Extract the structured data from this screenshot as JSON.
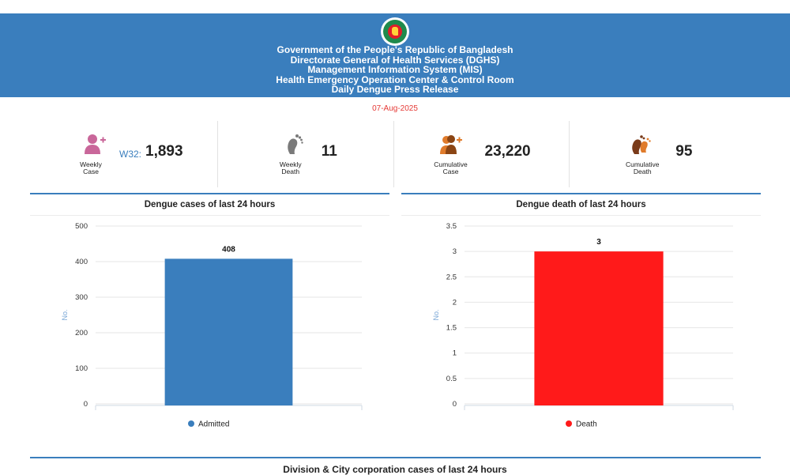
{
  "header": {
    "lines": [
      "Government of the People's Republic of Bangladesh",
      "Directorate General of Health Services (DGHS)",
      "Management Information System (MIS)",
      "Health Emergency Operation Center & Control Room",
      "Daily Dengue Press Release"
    ],
    "logo": "bangladesh-government-seal"
  },
  "date": "07-Aug-2025",
  "stats": {
    "weekly_case": {
      "caption_1": "Weekly",
      "caption_2": "Case",
      "week": "W32:",
      "value": "1,893",
      "icon": "person-plus-icon"
    },
    "weekly_death": {
      "caption_1": "Weekly",
      "caption_2": "Death",
      "value": "11",
      "icon": "footprint-icon"
    },
    "cumulative_case": {
      "caption_1": "Cumulative",
      "caption_2": "Case",
      "value": "23,220",
      "icon": "people-plus-icon"
    },
    "cumulative_death": {
      "caption_1": "Cumulative",
      "caption_2": "Death",
      "value": "95",
      "icon": "footprints-icon"
    }
  },
  "colors": {
    "header_bg": "#3a7ebd",
    "admitted": "#3a7ebd",
    "death": "#ff1a1a",
    "date": "#e53935",
    "week": "#3a7ebd"
  },
  "chart_data": [
    {
      "type": "bar",
      "title": "Dengue cases of last 24 hours",
      "ylabel": "No.",
      "ylim": [
        0,
        500
      ],
      "yticks": [
        0,
        100,
        200,
        300,
        400,
        500
      ],
      "tick_labels": [
        "0",
        "100",
        "200",
        "300",
        "400",
        "500"
      ],
      "series": [
        {
          "name": "Admitted",
          "values": [
            408
          ],
          "data_labels": [
            "408"
          ]
        }
      ],
      "legend": "bottom-center",
      "grid": true
    },
    {
      "type": "bar",
      "title": "Dengue death of last 24 hours",
      "ylabel": "No.",
      "ylim": [
        0,
        3.5
      ],
      "yticks": [
        0,
        0.5,
        1,
        1.5,
        2,
        2.5,
        3,
        3.5
      ],
      "tick_labels": [
        "0",
        "0.5",
        "1",
        "1.5",
        "2",
        "2.5",
        "3",
        "3.5"
      ],
      "series": [
        {
          "name": "Death",
          "values": [
            3
          ],
          "data_labels": [
            "3"
          ]
        }
      ],
      "legend": "bottom-center",
      "grid": true
    }
  ],
  "section": {
    "bottom_title": "Division & City corporation cases of last 24 hours"
  }
}
